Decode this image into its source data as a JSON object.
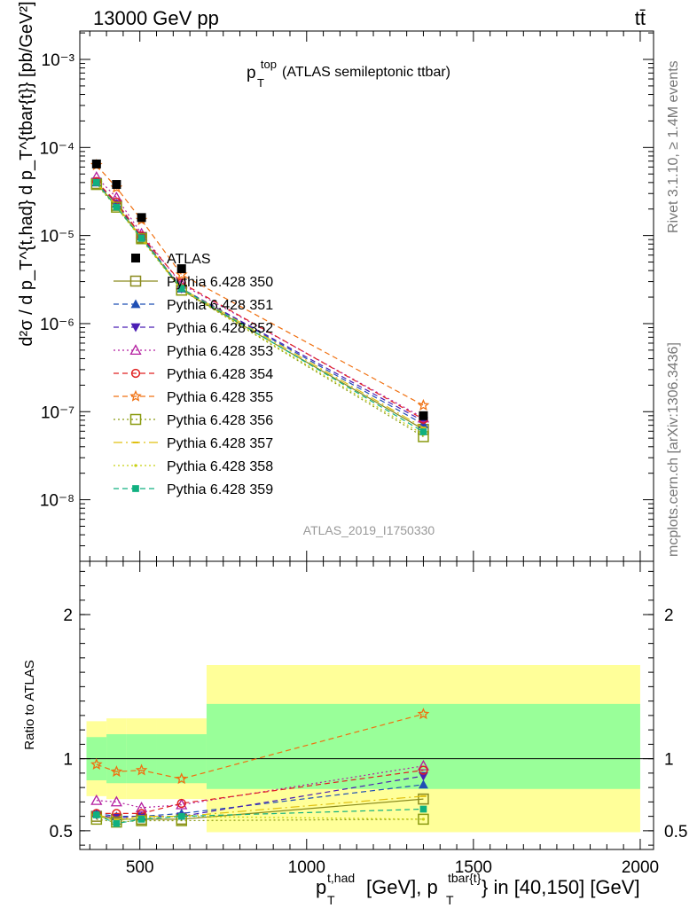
{
  "header": {
    "left": "13000 GeV pp",
    "right": "tt̄"
  },
  "side": {
    "top": "Rivet 3.1.10, ≥ 1.4M events",
    "bottom": "mcplots.cern.ch [arXiv:1306.3436]"
  },
  "chart_data": [
    {
      "type": "line",
      "title_main": "p",
      "title_sup": "top",
      "title_sub": "T",
      "title_rest": " (ATLAS semileptonic ttbar)",
      "watermark": "ATLAS_2019_I1750330",
      "ylabel": "d²σ / d p_T^{t,had} d p_T^{tbar{t}} [pb/GeV²]",
      "yscale": "log",
      "ylim": [
        2e-09,
        0.0021
      ],
      "xlim": [
        320,
        2040
      ],
      "ytick_labels": [
        "10⁻³",
        "10⁻⁴",
        "10⁻⁵",
        "10⁻⁶",
        "10⁻⁷",
        "10⁻⁸"
      ],
      "x": [
        370,
        430,
        505,
        625,
        1350
      ],
      "x_edges": [
        340,
        400,
        460,
        550,
        700,
        2000
      ],
      "data_series": {
        "name": "ATLAS",
        "values": [
          6.5e-05,
          3.8e-05,
          1.6e-05,
          4.2e-06,
          9e-08
        ]
      },
      "series": [
        {
          "name": "Pythia 6.428 350",
          "color": "#8a8a1e",
          "values": [
            3.9e-05,
            2.2e-05,
            9.5e-06,
            2.4e-06,
            6.3e-08
          ]
        },
        {
          "name": "Pythia 6.428 351",
          "color": "#1f4fb4",
          "values": [
            4e-05,
            2.3e-05,
            9.8e-06,
            2.5e-06,
            7.2e-08
          ]
        },
        {
          "name": "Pythia 6.428 352",
          "color": "#4b1fb4",
          "values": [
            4.1e-05,
            2.3e-05,
            9.8e-06,
            2.5e-06,
            7.8e-08
          ]
        },
        {
          "name": "Pythia 6.428 353",
          "color": "#b41fa0",
          "values": [
            4.6e-05,
            2.7e-05,
            1.05e-05,
            2.8e-06,
            8.5e-08
          ]
        },
        {
          "name": "Pythia 6.428 354",
          "color": "#e02020",
          "values": [
            4.1e-05,
            2.4e-05,
            9.9e-06,
            2.9e-06,
            8.2e-08
          ]
        },
        {
          "name": "Pythia 6.428 355",
          "color": "#f07010",
          "values": [
            6.3e-05,
            3.5e-05,
            1.5e-05,
            3.6e-06,
            1.18e-07
          ]
        },
        {
          "name": "Pythia 6.428 356",
          "color": "#8a9a10",
          "values": [
            3.8e-05,
            2.1e-05,
            9.2e-06,
            2.4e-06,
            5.2e-08
          ]
        },
        {
          "name": "Pythia 6.428 357",
          "color": "#e0c010",
          "values": [
            4e-05,
            2.2e-05,
            9.5e-06,
            2.5e-06,
            6.6e-08
          ]
        },
        {
          "name": "Pythia 6.428 358",
          "color": "#c8d010",
          "values": [
            3.9e-05,
            2.1e-05,
            9e-06,
            2.4e-06,
            5.5e-08
          ]
        },
        {
          "name": "Pythia 6.428 359",
          "color": "#10b080",
          "values": [
            4e-05,
            2.1e-05,
            9.3e-06,
            2.5e-06,
            5.9e-08
          ]
        }
      ]
    },
    {
      "type": "line",
      "ylabel": "Ratio to ATLAS",
      "ylim": [
        0.37,
        2.37
      ],
      "xlim": [
        320,
        2040
      ],
      "ytick_labels": [
        "0.5",
        "1",
        "2"
      ],
      "xtick_labels": [
        "500",
        "1000",
        "1500",
        "2000"
      ],
      "xlabel": "p_T^{t,had} [GeV], p_T^{tbar{t}} in [40,150] [GeV]",
      "xlabel_parts": {
        "p1": "p",
        "sub1": "T",
        "sup1": "t,had",
        "mid": " [GeV], p",
        "sub2": "T",
        "sup2": "tbar{t}",
        "end": "} in [40,150] [GeV]"
      },
      "bands": {
        "inner": [
          [
            0.85,
            1.15
          ],
          [
            0.83,
            1.17
          ],
          [
            0.83,
            1.17
          ],
          [
            0.83,
            1.17
          ],
          [
            0.79,
            1.38
          ]
        ],
        "outer": [
          [
            0.74,
            1.26
          ],
          [
            0.72,
            1.28
          ],
          [
            0.72,
            1.28
          ],
          [
            0.72,
            1.28
          ],
          [
            0.49,
            1.65
          ]
        ]
      },
      "ratios": [
        [
          0.6,
          0.58,
          0.58,
          0.58,
          0.72
        ],
        [
          0.62,
          0.6,
          0.6,
          0.62,
          0.82
        ],
        [
          0.61,
          0.59,
          0.6,
          0.6,
          0.88
        ],
        [
          0.71,
          0.7,
          0.66,
          0.68,
          0.95
        ],
        [
          0.62,
          0.62,
          0.62,
          0.69,
          0.92
        ],
        [
          0.96,
          0.91,
          0.92,
          0.86,
          1.31
        ],
        [
          0.58,
          0.56,
          0.57,
          0.57,
          0.58
        ],
        [
          0.61,
          0.58,
          0.6,
          0.6,
          0.74
        ],
        [
          0.6,
          0.57,
          0.59,
          0.6,
          0.58
        ],
        [
          0.61,
          0.55,
          0.58,
          0.6,
          0.65
        ]
      ]
    }
  ]
}
